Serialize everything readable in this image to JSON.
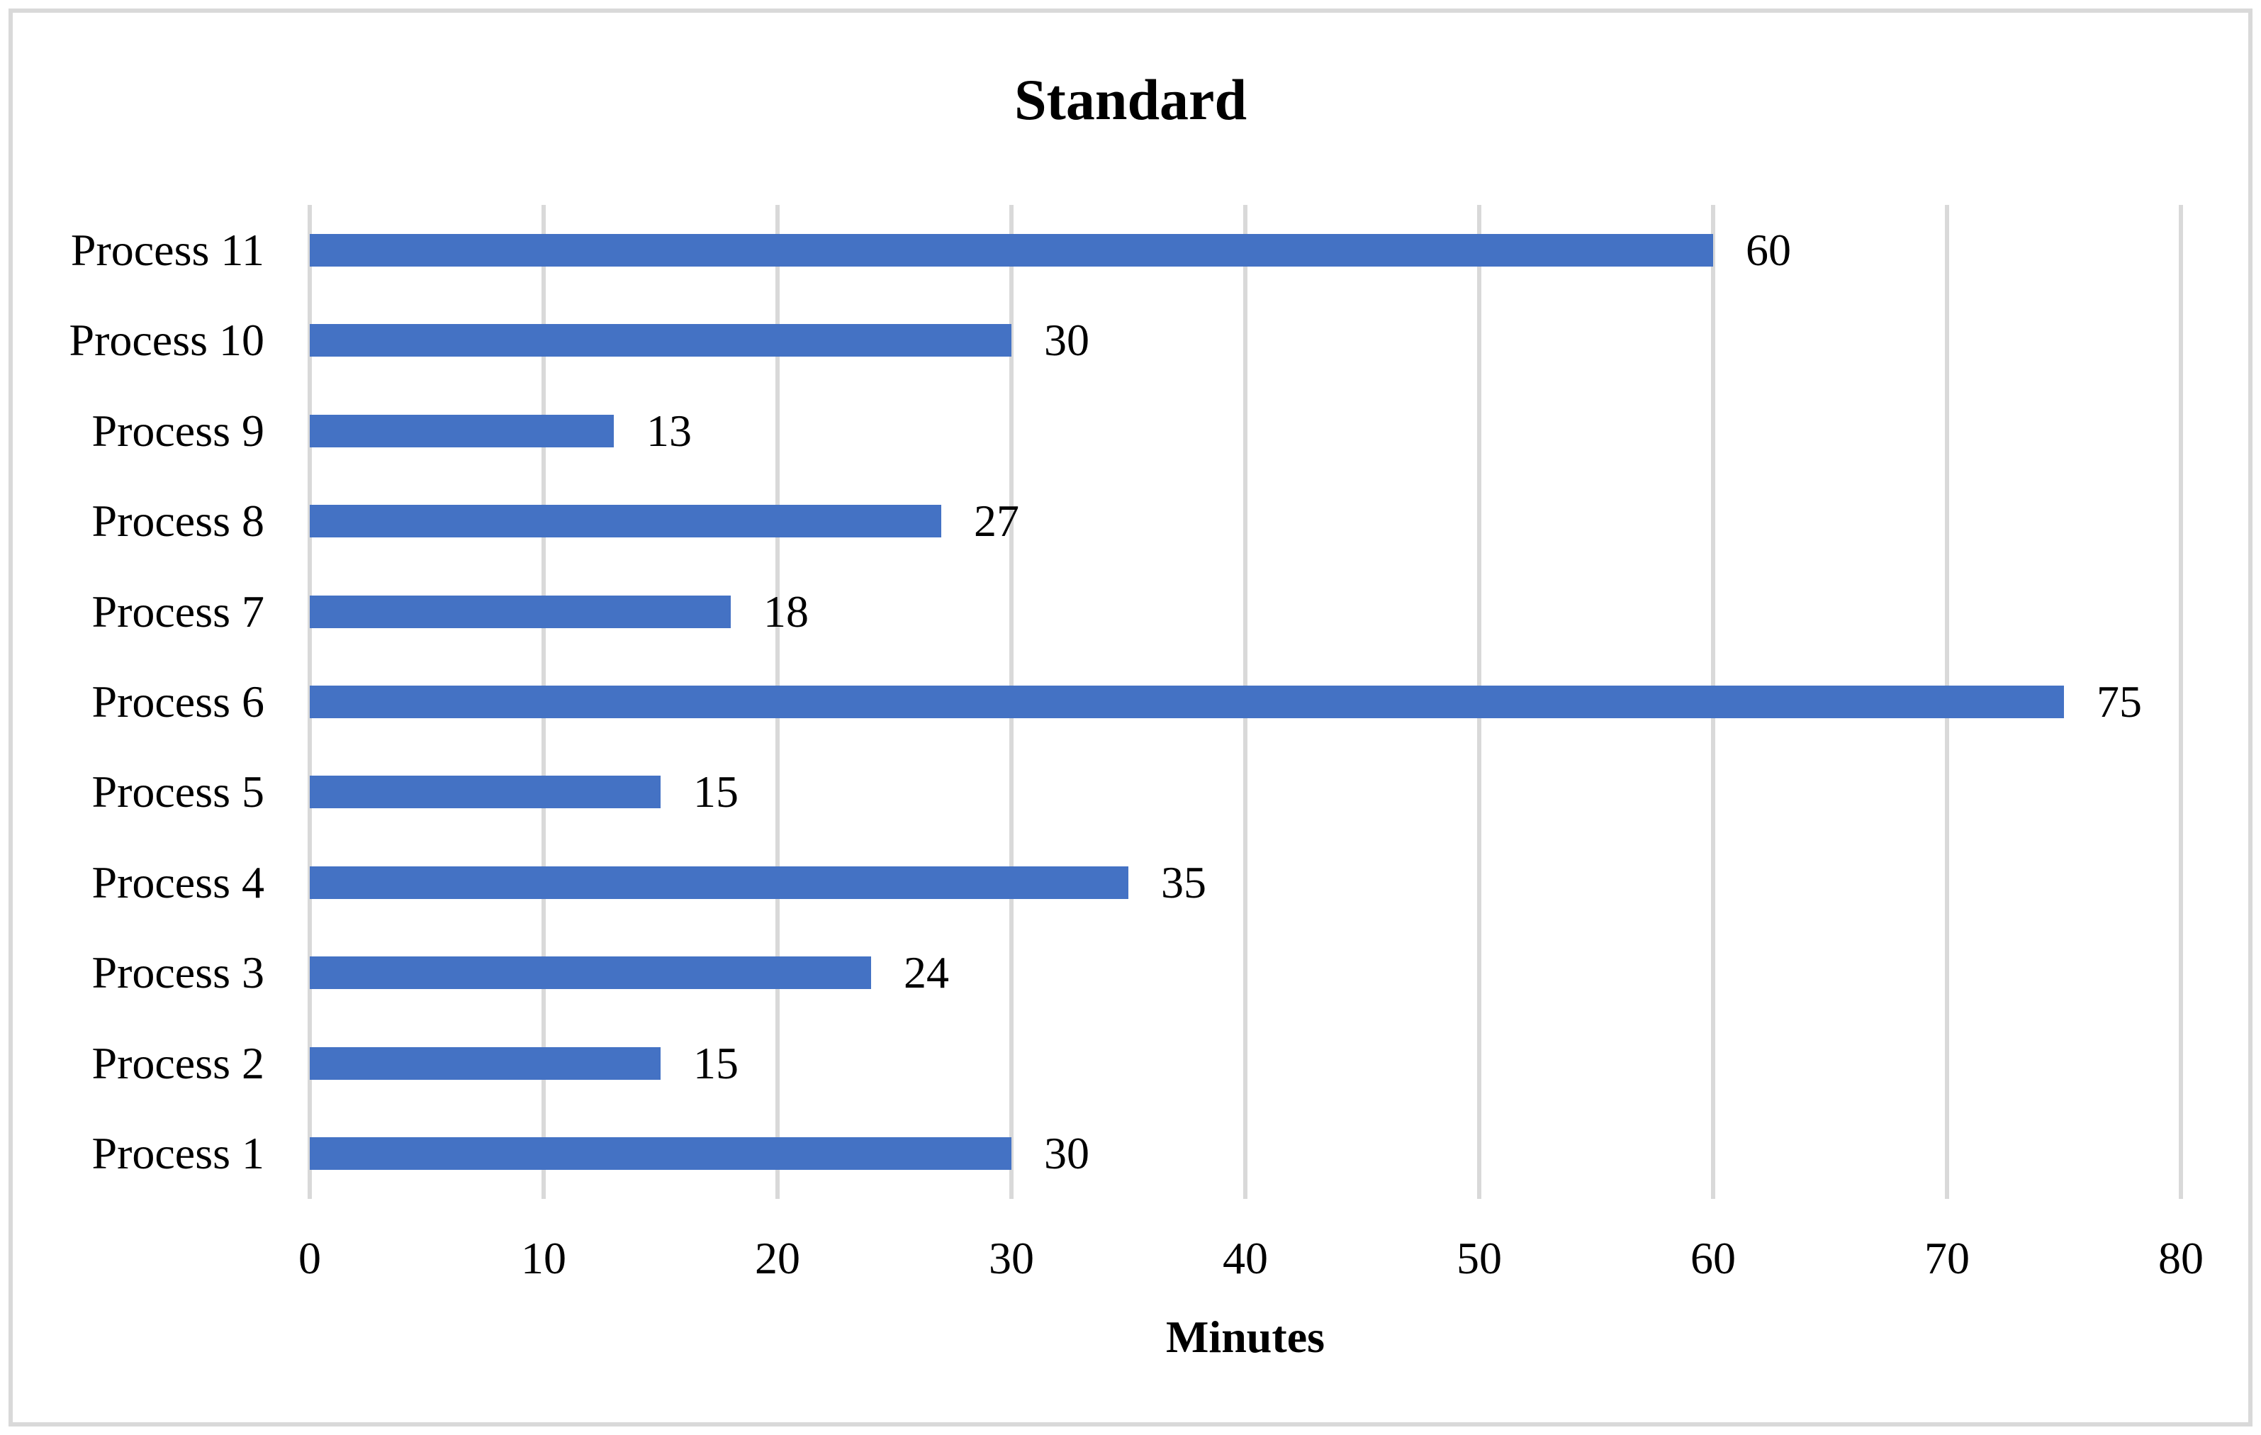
{
  "chart_data": {
    "type": "bar",
    "orientation": "horizontal",
    "title": "Standard",
    "xlabel": "Minutes",
    "ylabel": "",
    "categories": [
      "Process 11",
      "Process 10",
      "Process 9",
      "Process 8",
      "Process 7",
      "Process 6",
      "Process 5",
      "Process 4",
      "Process 3",
      "Process 2",
      "Process 1"
    ],
    "values": [
      60,
      30,
      13,
      27,
      18,
      75,
      15,
      35,
      24,
      15,
      30
    ],
    "data_labels": [
      60,
      30,
      13,
      27,
      18,
      75,
      15,
      35,
      24,
      15,
      30
    ],
    "xlim": [
      0,
      80
    ],
    "xticks": [
      0,
      10,
      20,
      30,
      40,
      50,
      60,
      70,
      80
    ],
    "grid": "vertical-gridlines-on",
    "legend": "none",
    "colors": {
      "bar": "#4472C4",
      "gridline": "#D9D9D9",
      "border": "#D9D9D9",
      "text": "#000000",
      "background": "#FFFFFF"
    }
  }
}
